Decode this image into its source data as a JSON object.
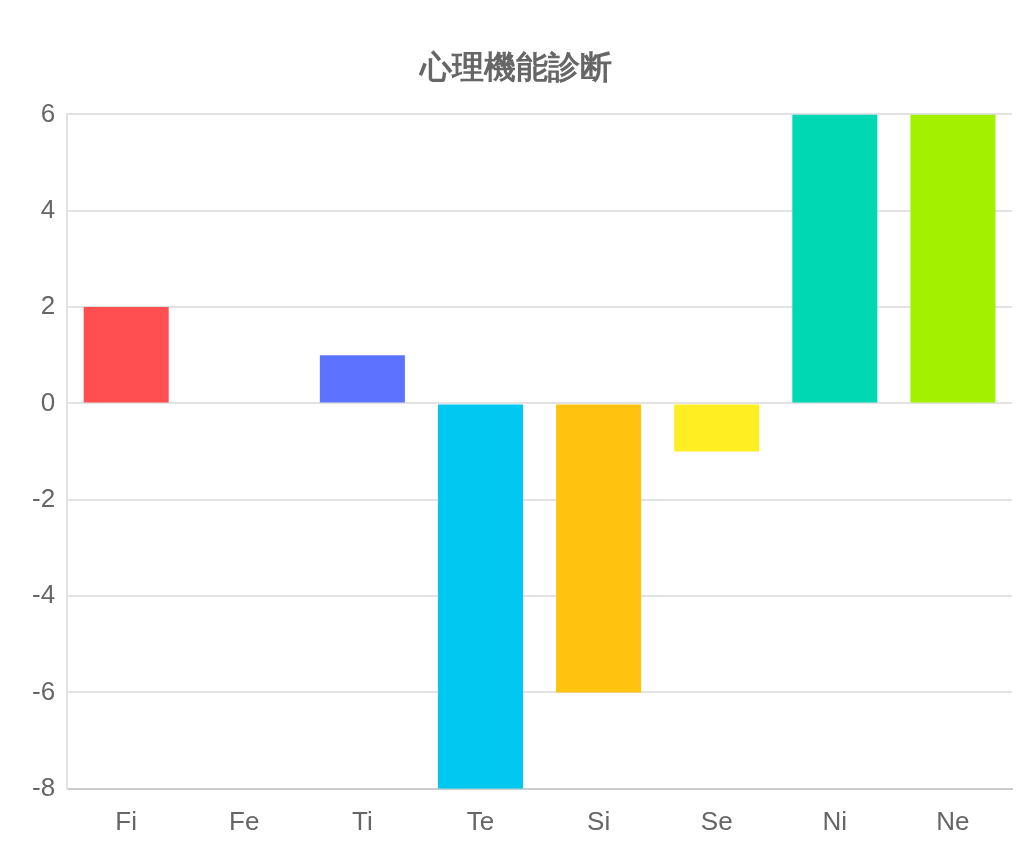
{
  "chart_data": {
    "type": "bar",
    "title": "心理機能診断",
    "categories": [
      "Fi",
      "Fe",
      "Ti",
      "Te",
      "Si",
      "Se",
      "Ni",
      "Ne"
    ],
    "values": [
      2,
      0,
      1,
      -8,
      -6,
      -1,
      6,
      6
    ],
    "colors": [
      "#ff4f51",
      "#ff9f40",
      "#5b73ff",
      "#00c8f0",
      "#ffc20e",
      "#ffee22",
      "#00d8b4",
      "#a3f000"
    ],
    "ylim": [
      -8,
      6
    ],
    "yticks": [
      -8,
      -6,
      -4,
      -2,
      0,
      2,
      4,
      6
    ],
    "grid": "y",
    "legend": false
  }
}
